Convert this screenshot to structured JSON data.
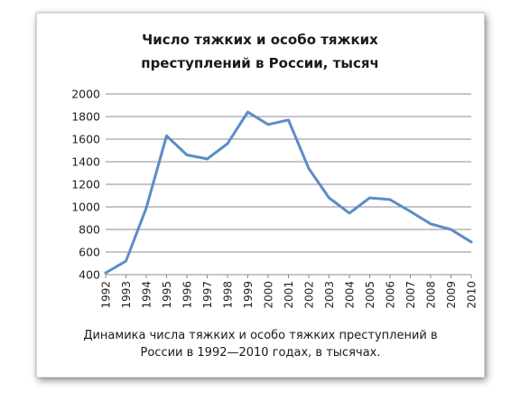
{
  "chart_data": {
    "type": "line",
    "title_lines": [
      "Число тяжких и особо тяжких",
      "преступлений в России, тысяч"
    ],
    "xlabel": "",
    "ylabel": "",
    "categories": [
      "1992",
      "1993",
      "1994",
      "1995",
      "1996",
      "1997",
      "1998",
      "1999",
      "2000",
      "2001",
      "2002",
      "2003",
      "2004",
      "2005",
      "2006",
      "2007",
      "2008",
      "2009",
      "2010"
    ],
    "series": [
      {
        "values": [
          415,
          520,
          990,
          1630,
          1460,
          1425,
          1560,
          1840,
          1730,
          1770,
          1340,
          1080,
          945,
          1080,
          1065,
          960,
          850,
          800,
          690
        ]
      }
    ],
    "y_ticks": [
      "2000",
      "1800",
      "1600",
      "1400",
      "1200",
      "1000",
      "800",
      "600",
      "400"
    ],
    "ylim": [
      400,
      2000
    ],
    "grid": true,
    "legend": "none",
    "line_color": "#5b8dc8",
    "grid_color": "#8c8c8c"
  },
  "caption": {
    "line1": "Динамика числа тяжких и особо тяжких преступлений в",
    "line2": "России в 1992—2010 годах, в тысячах."
  }
}
